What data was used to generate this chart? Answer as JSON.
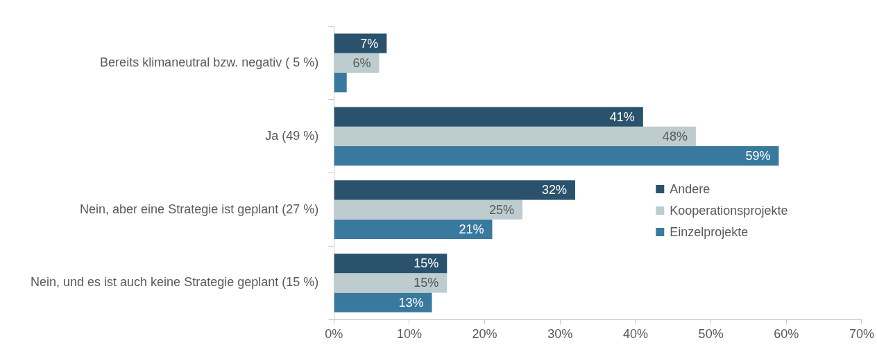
{
  "chart_data": {
    "type": "bar",
    "orientation": "horizontal",
    "categories": [
      "Bereits klimaneutral bzw. negativ ( 5 %)",
      "Ja (49 %)",
      "Nein, aber eine Strategie ist geplant (27 %)",
      "Nein, und es ist auch keine Strategie geplant (15 %)"
    ],
    "series": [
      {
        "name": "Andere",
        "color": "#2a526c",
        "values": [
          7,
          41,
          32,
          15
        ],
        "value_labels": [
          "7%",
          "41%",
          "32%",
          "15%"
        ]
      },
      {
        "name": "Kooperationsprojekte",
        "color": "#bccccf",
        "values": [
          6,
          48,
          25,
          15
        ],
        "value_labels": [
          "6%",
          "48%",
          "25%",
          "15%"
        ]
      },
      {
        "name": "Einzelprojekte",
        "color": "#3a799e",
        "values": [
          1.7,
          59,
          21,
          13
        ],
        "value_labels": [
          null,
          "59%",
          "21%",
          "13%"
        ]
      }
    ],
    "xlim": [
      0,
      70
    ],
    "xticks": [
      {
        "value": 0,
        "label": "0%"
      },
      {
        "value": 10,
        "label": "10%"
      },
      {
        "value": 20,
        "label": "20%"
      },
      {
        "value": 30,
        "label": "30%"
      },
      {
        "value": 40,
        "label": "40%"
      },
      {
        "value": 50,
        "label": "50%"
      },
      {
        "value": 60,
        "label": "60%"
      },
      {
        "value": 70,
        "label": "70%"
      }
    ],
    "grid": false,
    "legend": "right"
  }
}
